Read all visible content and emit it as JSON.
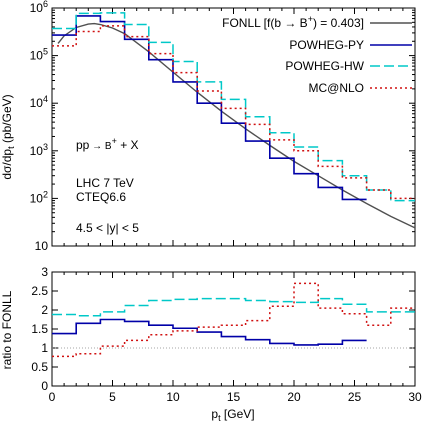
{
  "chart_data": [
    {
      "type": "line",
      "panel": "main",
      "ylabel_main": "dσ/dp",
      "ylabel_sub": "t",
      "ylabel_unit": " (pb/GeV)",
      "yscale": "log",
      "ylim": [
        10,
        1000000
      ],
      "xlim": [
        0,
        30
      ],
      "y_ticks": [
        {
          "v": 10,
          "base": "10",
          "exp": ""
        },
        {
          "v": 100,
          "base": "10",
          "exp": "2"
        },
        {
          "v": 1000,
          "base": "10",
          "exp": "3"
        },
        {
          "v": 10000,
          "base": "10",
          "exp": "4"
        },
        {
          "v": 100000,
          "base": "10",
          "exp": "5"
        },
        {
          "v": 1000000,
          "base": "10",
          "exp": "6"
        }
      ],
      "annotations": {
        "process_a": "pp",
        "process_arrow": " → B",
        "process_sup": "+",
        "process_b": " + X",
        "energy": "LHC 7 TeV",
        "pdf": "CTEQ6.6",
        "rapidity": "4.5 < |y| < 5"
      },
      "legend": [
        {
          "label_a": "FONLL [f(b → B",
          "label_sup": "+",
          "label_b": ") = 0.403]",
          "color": "#505050",
          "dash": "solid"
        },
        {
          "label_a": "POWHEG-PY",
          "label_sup": "",
          "label_b": "",
          "color": "#0000a8",
          "dash": "solid"
        },
        {
          "label_a": "POWHEG-HW",
          "label_sup": "",
          "label_b": "",
          "color": "#00c8c8",
          "dash": "long"
        },
        {
          "label_a": "MC@NLO",
          "label_sup": "",
          "label_b": "",
          "color": "#d01010",
          "dash": "dot"
        }
      ],
      "bin_edges": [
        0,
        2,
        4,
        6,
        8,
        10,
        12,
        14,
        16,
        18,
        20,
        22,
        24,
        26,
        28,
        30
      ],
      "series": [
        {
          "name": "FONLL [f(b → B+) = 0.403]",
          "kind": "curve",
          "x": [
            0.5,
            1,
            2,
            3,
            3.5,
            4,
            5,
            6,
            8,
            10,
            12,
            14,
            16,
            18,
            20,
            22,
            24,
            26,
            28,
            30
          ],
          "y": [
            180000,
            260000,
            390000,
            460000,
            470000,
            450000,
            380000,
            290000,
            120000,
            45000,
            17000,
            6800,
            2900,
            1300,
            600,
            300,
            150,
            78,
            42,
            24
          ]
        },
        {
          "name": "POWHEG-PY",
          "kind": "hist",
          "values": [
            270000,
            680000,
            520000,
            220000,
            82000,
            28000,
            10000,
            3800,
            1600,
            700,
            330,
            170,
            95
          ]
        },
        {
          "name": "POWHEG-HW",
          "kind": "hist",
          "values": [
            370000,
            770000,
            790000,
            450000,
            190000,
            75000,
            28000,
            12000,
            5200,
            2400,
            1200,
            620,
            300,
            150,
            90
          ]
        },
        {
          "name": "MC@NLO",
          "kind": "hist",
          "values": [
            160000,
            320000,
            420000,
            250000,
            110000,
            44000,
            18000,
            7800,
            3600,
            1700,
            1000,
            470,
            270,
            150,
            100
          ]
        }
      ]
    },
    {
      "type": "line",
      "panel": "ratio",
      "ylabel": "ratio to FONLL",
      "xlabel_main": "p",
      "xlabel_sub": "t",
      "xlabel_unit": " [GeV]",
      "xlim": [
        0,
        30
      ],
      "ylim": [
        0,
        3
      ],
      "y_ticks": [
        "0",
        "0.5",
        "1",
        "1.5",
        "2",
        "2.5",
        "3"
      ],
      "x_ticks": [
        "0",
        "5",
        "10",
        "15",
        "20",
        "25",
        "30"
      ],
      "reference_line": 1,
      "bin_edges": [
        0,
        2,
        4,
        6,
        8,
        10,
        12,
        14,
        16,
        18,
        20,
        22,
        24,
        26,
        28,
        30
      ],
      "series": [
        {
          "name": "POWHEG-PY",
          "values": [
            1.38,
            1.65,
            1.75,
            1.7,
            1.6,
            1.52,
            1.42,
            1.3,
            1.22,
            1.12,
            1.08,
            1.1,
            1.2
          ]
        },
        {
          "name": "POWHEG-HW",
          "values": [
            1.88,
            1.85,
            1.95,
            2.12,
            2.25,
            2.28,
            2.3,
            2.3,
            2.25,
            2.22,
            2.2,
            2.3,
            2.15,
            1.95,
            1.95
          ]
        },
        {
          "name": "MC@NLO",
          "values": [
            0.78,
            0.85,
            1.05,
            1.2,
            1.35,
            1.45,
            1.55,
            1.6,
            1.72,
            2.1,
            2.7,
            2.05,
            1.9,
            1.6,
            2.05
          ]
        }
      ]
    }
  ]
}
